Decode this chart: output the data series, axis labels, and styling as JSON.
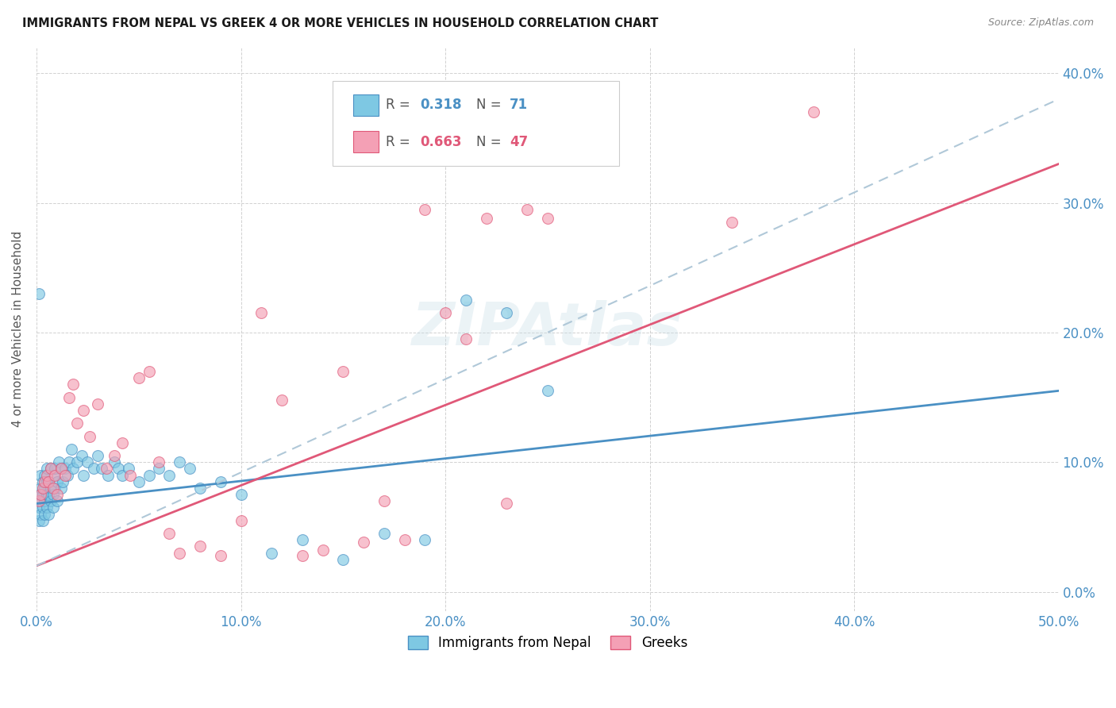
{
  "title": "IMMIGRANTS FROM NEPAL VS GREEK 4 OR MORE VEHICLES IN HOUSEHOLD CORRELATION CHART",
  "source": "Source: ZipAtlas.com",
  "ylabel": "4 or more Vehicles in Household",
  "legend_label1": "Immigrants from Nepal",
  "legend_label2": "Greeks",
  "watermark": "ZIPAtlas",
  "xlim": [
    0.0,
    0.5
  ],
  "ylim": [
    -0.015,
    0.42
  ],
  "yticks": [
    0.0,
    0.1,
    0.2,
    0.3,
    0.4
  ],
  "xticks": [
    0.0,
    0.1,
    0.2,
    0.3,
    0.4,
    0.5
  ],
  "color_blue": "#7ec8e3",
  "color_pink": "#f4a0b5",
  "color_blue_line": "#4a90c4",
  "color_pink_line": "#e05878",
  "color_dash": "#b0c8d8",
  "color_axis_labels": "#4a90c4",
  "nepal_x": [
    0.001,
    0.001,
    0.001,
    0.002,
    0.002,
    0.002,
    0.002,
    0.003,
    0.003,
    0.003,
    0.003,
    0.004,
    0.004,
    0.004,
    0.004,
    0.005,
    0.005,
    0.005,
    0.005,
    0.006,
    0.006,
    0.006,
    0.007,
    0.007,
    0.007,
    0.008,
    0.008,
    0.008,
    0.009,
    0.009,
    0.01,
    0.01,
    0.011,
    0.012,
    0.012,
    0.013,
    0.014,
    0.015,
    0.016,
    0.017,
    0.018,
    0.02,
    0.022,
    0.023,
    0.025,
    0.028,
    0.03,
    0.032,
    0.035,
    0.038,
    0.04,
    0.042,
    0.045,
    0.05,
    0.055,
    0.06,
    0.065,
    0.07,
    0.075,
    0.08,
    0.09,
    0.1,
    0.115,
    0.13,
    0.15,
    0.17,
    0.19,
    0.21,
    0.23,
    0.25,
    0.001
  ],
  "nepal_y": [
    0.055,
    0.065,
    0.075,
    0.06,
    0.07,
    0.08,
    0.09,
    0.055,
    0.065,
    0.075,
    0.085,
    0.06,
    0.07,
    0.08,
    0.09,
    0.065,
    0.075,
    0.085,
    0.095,
    0.06,
    0.075,
    0.085,
    0.07,
    0.08,
    0.095,
    0.065,
    0.075,
    0.09,
    0.08,
    0.095,
    0.07,
    0.085,
    0.1,
    0.08,
    0.095,
    0.085,
    0.095,
    0.09,
    0.1,
    0.11,
    0.095,
    0.1,
    0.105,
    0.09,
    0.1,
    0.095,
    0.105,
    0.095,
    0.09,
    0.1,
    0.095,
    0.09,
    0.095,
    0.085,
    0.09,
    0.095,
    0.09,
    0.1,
    0.095,
    0.08,
    0.085,
    0.075,
    0.03,
    0.04,
    0.025,
    0.045,
    0.04,
    0.225,
    0.215,
    0.155,
    0.23
  ],
  "greek_x": [
    0.001,
    0.002,
    0.003,
    0.004,
    0.005,
    0.006,
    0.007,
    0.008,
    0.009,
    0.01,
    0.012,
    0.014,
    0.016,
    0.018,
    0.02,
    0.023,
    0.026,
    0.03,
    0.034,
    0.038,
    0.042,
    0.046,
    0.05,
    0.055,
    0.06,
    0.065,
    0.07,
    0.08,
    0.09,
    0.1,
    0.11,
    0.12,
    0.13,
    0.14,
    0.15,
    0.16,
    0.17,
    0.18,
    0.19,
    0.2,
    0.21,
    0.22,
    0.23,
    0.24,
    0.25,
    0.34,
    0.38
  ],
  "greek_y": [
    0.07,
    0.075,
    0.08,
    0.085,
    0.09,
    0.085,
    0.095,
    0.08,
    0.09,
    0.075,
    0.095,
    0.09,
    0.15,
    0.16,
    0.13,
    0.14,
    0.12,
    0.145,
    0.095,
    0.105,
    0.115,
    0.09,
    0.165,
    0.17,
    0.1,
    0.045,
    0.03,
    0.035,
    0.028,
    0.055,
    0.215,
    0.148,
    0.028,
    0.032,
    0.17,
    0.038,
    0.07,
    0.04,
    0.295,
    0.215,
    0.195,
    0.288,
    0.068,
    0.295,
    0.288,
    0.285,
    0.37
  ],
  "nepal_line_x": [
    0.0,
    0.5
  ],
  "nepal_line_y": [
    0.068,
    0.155
  ],
  "greek_line_x": [
    0.0,
    0.5
  ],
  "greek_line_y": [
    0.02,
    0.33
  ],
  "dash_line_x": [
    0.0,
    0.5
  ],
  "dash_line_y": [
    0.02,
    0.38
  ]
}
